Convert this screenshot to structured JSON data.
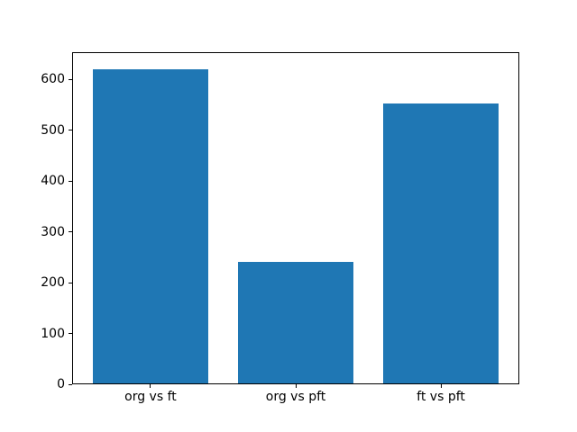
{
  "figure": {
    "background_color": "#ffffff",
    "axis_color": "#000000",
    "bar_color": "#1f77b4"
  },
  "chart_data": {
    "type": "bar",
    "categories": [
      "org vs ft",
      "org vs pft",
      "ft vs pft"
    ],
    "values": [
      622,
      240,
      554
    ],
    "yticks": [
      0,
      100,
      200,
      300,
      400,
      500,
      600
    ],
    "ylim": [
      0,
      654
    ],
    "xlim": [
      -0.54,
      2.54
    ],
    "bar_width": 0.8,
    "grid": false,
    "legend": "none",
    "title": ""
  }
}
